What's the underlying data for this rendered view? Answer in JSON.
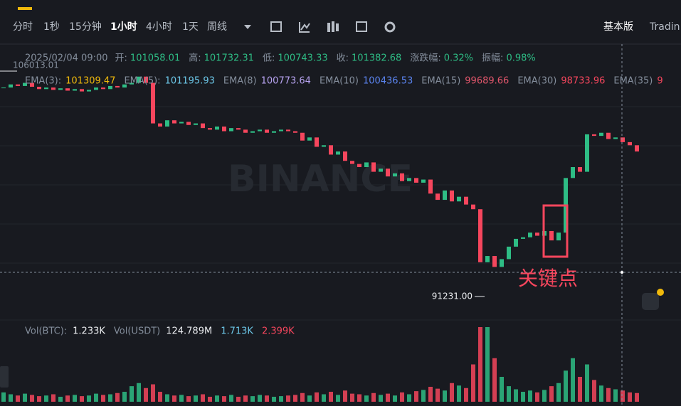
{
  "toolbar": {
    "intervals": [
      "分时",
      "1秒",
      "15分钟",
      "1小时",
      "4小时",
      "1天",
      "周线"
    ],
    "modes": [
      "基本版",
      "Tradin"
    ]
  },
  "ohlc": {
    "date": "2025/02/04 09:00",
    "items": [
      {
        "label": "开:",
        "value": 101058.01
      },
      {
        "label": "高:",
        "value": 101732.31
      },
      {
        "label": "低:",
        "value": 100743.33
      },
      {
        "label": "收:",
        "value": 101382.68
      },
      {
        "label": "涨跌幅:",
        "value": "0.32%"
      },
      {
        "label": "振幅:",
        "value": "0.98%"
      }
    ]
  },
  "ema": [
    {
      "label": "EMA(3):",
      "value": 101309.47,
      "color": "#f0b90b"
    },
    {
      "label": "EMA(5):",
      "value": 101195.93,
      "color": "#6cc7e8"
    },
    {
      "label": "EMA(8)",
      "value": 100773.64,
      "color": "#b7a3f0"
    },
    {
      "label": "EMA(10)",
      "value": 100436.53,
      "color": "#5b84f0"
    },
    {
      "label": "EMA(15)",
      "value": 99689.66,
      "color": "#e0566b"
    },
    {
      "label": "EMA(30)",
      "value": 98733.96,
      "color": "#f6465d"
    },
    {
      "label": "EMA(35)",
      "value": "9",
      "color": "#f6465d"
    }
  ],
  "volume_info": {
    "label": "Vol(BTC):",
    "value": "1.233K",
    "label2": "Vol(USDT)",
    "value2": "124.789M",
    "ma1": "1.713K",
    "ma2": "2.399K"
  },
  "price_high_label": "106013.01",
  "price_low_label": "91231.00",
  "annotation": "关键点",
  "watermark": "BINANCE",
  "candles": {
    "ylim": [
      89700,
      106200
    ],
    "up_color": "#2ebd85",
    "down_color": "#f6465d",
    "closes": [
      104600,
      104800,
      104700,
      104900,
      104650,
      104500,
      104600,
      104450,
      104550,
      104400,
      104500,
      104350,
      104450,
      104600,
      104500,
      104700,
      104600,
      104800,
      104900,
      105300,
      104900,
      102300,
      102100,
      102500,
      102300,
      102400,
      102200,
      102300,
      102000,
      101900,
      102100,
      101800,
      102000,
      101900,
      101700,
      101800,
      101900,
      101700,
      101800,
      101900,
      101800,
      101700,
      101200,
      101400,
      100800,
      100900,
      100300,
      100500,
      99900,
      99700,
      99500,
      99800,
      99200,
      99400,
      98900,
      99100,
      98600,
      98800,
      98500,
      98700,
      97800,
      97400,
      98000,
      97300,
      97600,
      97100,
      96800,
      93400,
      93800,
      93100,
      93600,
      94400,
      94900,
      95000,
      95300,
      95100,
      95400,
      94800,
      95300,
      98800,
      99500,
      99200,
      101600,
      101500,
      101700,
      101300,
      101400,
      101100,
      100900,
      100500
    ],
    "vlim": [
      0,
      12
    ],
    "volumes": [
      1.5,
      1.2,
      1,
      1.3,
      1.1,
      0.9,
      1,
      1.2,
      0.8,
      1,
      1.1,
      0.9,
      1,
      1.3,
      1.1,
      1.2,
      1.4,
      1.6,
      2.5,
      3,
      2.2,
      2.8,
      1.6,
      1.2,
      1,
      1.1,
      0.9,
      1,
      1.2,
      0.8,
      1,
      0.9,
      1.1,
      0.8,
      1,
      0.9,
      1.1,
      1,
      0.8,
      0.9,
      1,
      1.1,
      1.4,
      1,
      1.5,
      1.2,
      1.6,
      1.1,
      1.8,
      1.3,
      1.2,
      1,
      1.4,
      1.1,
      1.3,
      1,
      1.5,
      1.2,
      1.7,
      1.9,
      2.4,
      2.1,
      1.8,
      3,
      2.6,
      2.2,
      6,
      12,
      12,
      7,
      4,
      2.5,
      2,
      1.6,
      1.8,
      1.5,
      1.9,
      2.5,
      3,
      5,
      7,
      4,
      6,
      3.5,
      2.6,
      2.2,
      2,
      1.8,
      1.5,
      1.4
    ]
  }
}
